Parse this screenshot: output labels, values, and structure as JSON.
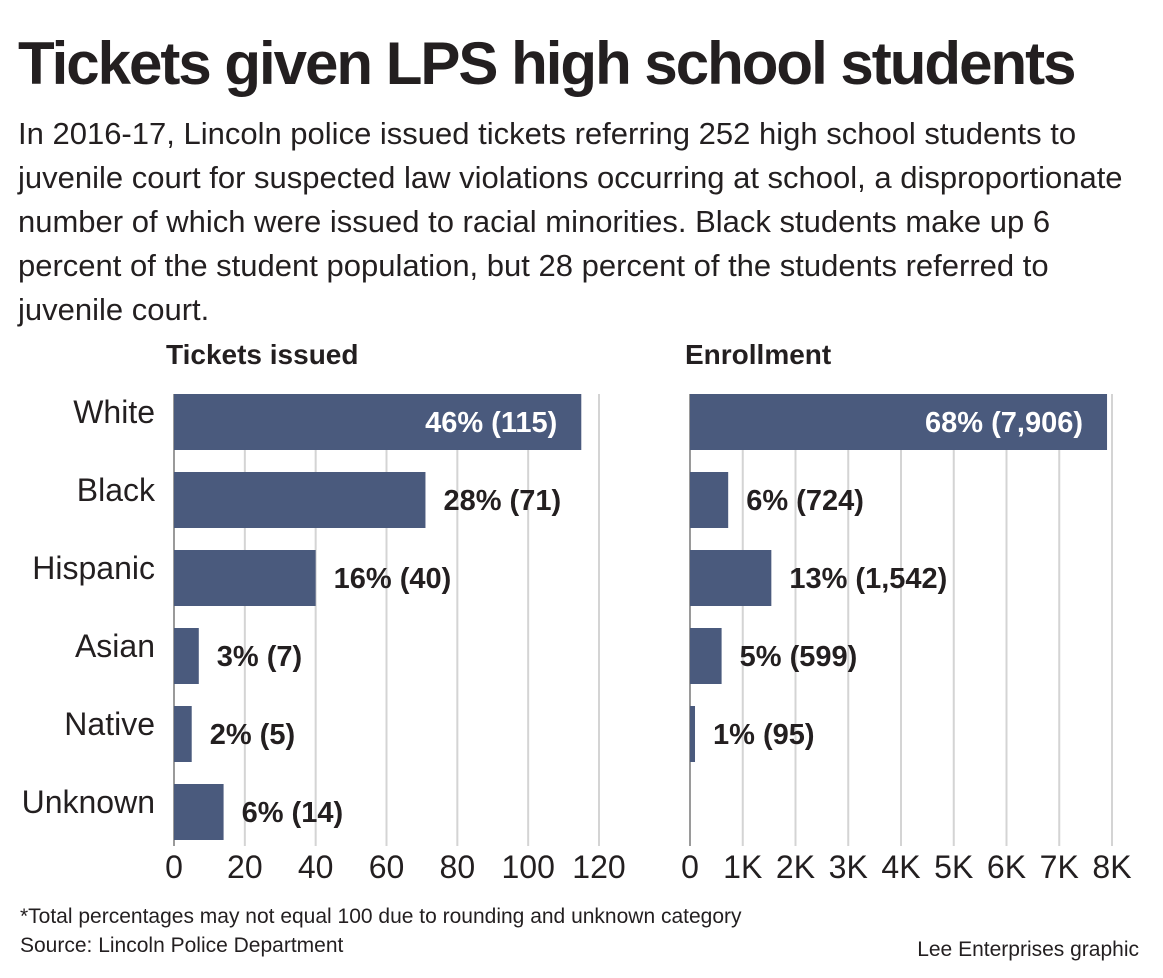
{
  "header": {
    "title": "Tickets given LPS high school students",
    "subtitle": "In 2016-17, Lincoln police issued tickets referring 252 high school students to juvenile court for suspected law violations occurring at school, a disproportionate number of which were issued to racial minorities. Black students make up 6 percent of the student population, but 28 percent of the students referred to juvenile court."
  },
  "chart_data": [
    {
      "type": "bar",
      "orientation": "horizontal",
      "title": "Tickets issued",
      "categories": [
        "White",
        "Black",
        "Hispanic",
        "Asian",
        "Native",
        "Unknown"
      ],
      "values": [
        115,
        71,
        40,
        7,
        5,
        14
      ],
      "data_labels": [
        "46% (115)",
        "28% (71)",
        "16% (40)",
        "3% (7)",
        "2% (5)",
        "6% (14)"
      ],
      "xlim": [
        0,
        120
      ],
      "ticks": [
        0,
        20,
        40,
        60,
        80,
        100,
        120
      ],
      "tick_labels": [
        "0",
        "20",
        "40",
        "60",
        "80",
        "100",
        "120"
      ],
      "grid": true,
      "bar_color": "#4a5a7d"
    },
    {
      "type": "bar",
      "orientation": "horizontal",
      "title": "Enrollment",
      "categories": [
        "White",
        "Black",
        "Hispanic",
        "Asian",
        "Native"
      ],
      "values": [
        7906,
        724,
        1542,
        599,
        95
      ],
      "data_labels": [
        "68% (7,906)",
        "6% (724)",
        "13% (1,542)",
        "5% (599)",
        "1% (95)"
      ],
      "xlim": [
        0,
        8000
      ],
      "ticks": [
        0,
        1000,
        2000,
        3000,
        4000,
        5000,
        6000,
        7000,
        8000
      ],
      "tick_labels": [
        "0",
        "1K",
        "2K",
        "3K",
        "4K",
        "5K",
        "6K",
        "7K",
        "8K"
      ],
      "grid": true,
      "bar_color": "#4a5a7d"
    }
  ],
  "footer": {
    "note": "*Total percentages may not equal 100 due to rounding and unknown category",
    "source": "Source: Lincoln Police Department",
    "credit": "Lee Enterprises graphic"
  }
}
